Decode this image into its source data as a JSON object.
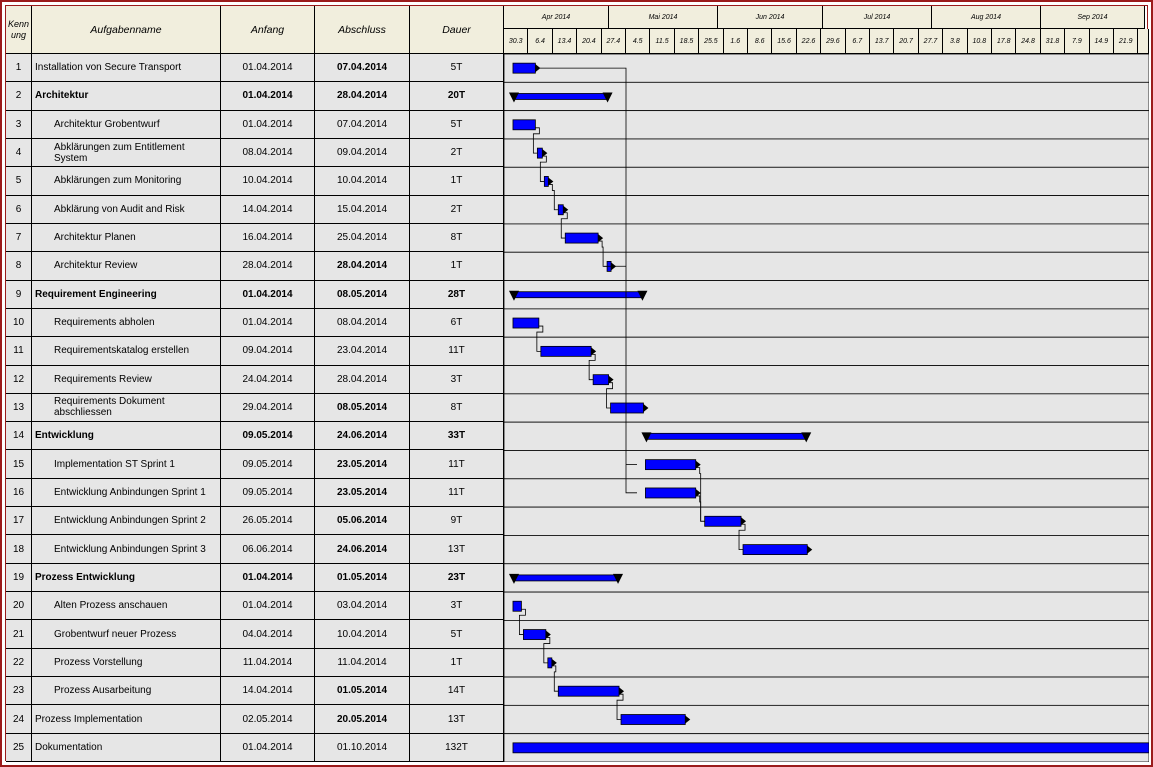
{
  "headers": {
    "id": "Kenn ung",
    "name": "Aufgabenname",
    "start": "Anfang",
    "end": "Abschluss",
    "duration": "Dauer"
  },
  "timeline": {
    "months": [
      "Apr 2014",
      "Mai 2014",
      "Jun 2014",
      "Jul 2014",
      "Aug 2014",
      "Sep 2014"
    ],
    "weeks": [
      "30.3",
      "6.4",
      "13.4",
      "20.4",
      "27.4",
      "4.5",
      "11.5",
      "18.5",
      "25.5",
      "1.6",
      "8.6",
      "15.6",
      "22.6",
      "29.6",
      "6.7",
      "13.7",
      "20.7",
      "27.7",
      "3.8",
      "10.8",
      "17.8",
      "24.8",
      "31.8",
      "7.9",
      "14.9",
      "21.9"
    ]
  },
  "colors": {
    "bar": "#0000ff",
    "header_bg": "#f1eedd",
    "row_bg": "#e6e6e6",
    "frame": "#9b1b1b"
  },
  "tasks": [
    {
      "id": "1",
      "name": "Installation von Secure Transport",
      "start": "01.04.2014",
      "end": "07.04.2014",
      "duration": "5T",
      "summary": false,
      "indent": false,
      "endBold": true
    },
    {
      "id": "2",
      "name": "Architektur",
      "start": "01.04.2014",
      "end": "28.04.2014",
      "duration": "20T",
      "summary": true,
      "indent": false,
      "endBold": true
    },
    {
      "id": "3",
      "name": "Architektur Grobentwurf",
      "start": "01.04.2014",
      "end": "07.04.2014",
      "duration": "5T",
      "summary": false,
      "indent": true,
      "endBold": false
    },
    {
      "id": "4",
      "name": "Abklärungen zum Entitlement System",
      "start": "08.04.2014",
      "end": "09.04.2014",
      "duration": "2T",
      "summary": false,
      "indent": true,
      "endBold": false
    },
    {
      "id": "5",
      "name": "Abklärungen zum Monitoring",
      "start": "10.04.2014",
      "end": "10.04.2014",
      "duration": "1T",
      "summary": false,
      "indent": true,
      "endBold": false
    },
    {
      "id": "6",
      "name": "Abklärung von Audit and Risk",
      "start": "14.04.2014",
      "end": "15.04.2014",
      "duration": "2T",
      "summary": false,
      "indent": true,
      "endBold": false
    },
    {
      "id": "7",
      "name": "Architektur Planen",
      "start": "16.04.2014",
      "end": "25.04.2014",
      "duration": "8T",
      "summary": false,
      "indent": true,
      "endBold": false
    },
    {
      "id": "8",
      "name": "Architektur Review",
      "start": "28.04.2014",
      "end": "28.04.2014",
      "duration": "1T",
      "summary": false,
      "indent": true,
      "endBold": true
    },
    {
      "id": "9",
      "name": "Requirement Engineering",
      "start": "01.04.2014",
      "end": "08.05.2014",
      "duration": "28T",
      "summary": true,
      "indent": false,
      "endBold": true
    },
    {
      "id": "10",
      "name": "Requirements abholen",
      "start": "01.04.2014",
      "end": "08.04.2014",
      "duration": "6T",
      "summary": false,
      "indent": true,
      "endBold": false
    },
    {
      "id": "11",
      "name": "Requirementskatalog erstellen",
      "start": "09.04.2014",
      "end": "23.04.2014",
      "duration": "11T",
      "summary": false,
      "indent": true,
      "endBold": false
    },
    {
      "id": "12",
      "name": "Requirements Review",
      "start": "24.04.2014",
      "end": "28.04.2014",
      "duration": "3T",
      "summary": false,
      "indent": true,
      "endBold": false
    },
    {
      "id": "13",
      "name": "Requirements Dokument abschliessen",
      "start": "29.04.2014",
      "end": "08.05.2014",
      "duration": "8T",
      "summary": false,
      "indent": true,
      "endBold": true
    },
    {
      "id": "14",
      "name": "Entwicklung",
      "start": "09.05.2014",
      "end": "24.06.2014",
      "duration": "33T",
      "summary": true,
      "indent": false,
      "endBold": true
    },
    {
      "id": "15",
      "name": "Implementation ST Sprint 1",
      "start": "09.05.2014",
      "end": "23.05.2014",
      "duration": "11T",
      "summary": false,
      "indent": true,
      "endBold": true
    },
    {
      "id": "16",
      "name": "Entwicklung Anbindungen Sprint 1",
      "start": "09.05.2014",
      "end": "23.05.2014",
      "duration": "11T",
      "summary": false,
      "indent": true,
      "endBold": true
    },
    {
      "id": "17",
      "name": "Entwicklung Anbindungen Sprint 2",
      "start": "26.05.2014",
      "end": "05.06.2014",
      "duration": "9T",
      "summary": false,
      "indent": true,
      "endBold": true
    },
    {
      "id": "18",
      "name": "Entwicklung Anbindungen Sprint 3",
      "start": "06.06.2014",
      "end": "24.06.2014",
      "duration": "13T",
      "summary": false,
      "indent": true,
      "endBold": true
    },
    {
      "id": "19",
      "name": "Prozess Entwicklung",
      "start": "01.04.2014",
      "end": "01.05.2014",
      "duration": "23T",
      "summary": true,
      "indent": false,
      "endBold": true
    },
    {
      "id": "20",
      "name": "Alten Prozess anschauen",
      "start": "01.04.2014",
      "end": "03.04.2014",
      "duration": "3T",
      "summary": false,
      "indent": true,
      "endBold": false
    },
    {
      "id": "21",
      "name": "Grobentwurf neuer Prozess",
      "start": "04.04.2014",
      "end": "10.04.2014",
      "duration": "5T",
      "summary": false,
      "indent": true,
      "endBold": false
    },
    {
      "id": "22",
      "name": "Prozess Vorstellung",
      "start": "11.04.2014",
      "end": "11.04.2014",
      "duration": "1T",
      "summary": false,
      "indent": true,
      "endBold": false
    },
    {
      "id": "23",
      "name": "Prozess Ausarbeitung",
      "start": "14.04.2014",
      "end": "01.05.2014",
      "duration": "14T",
      "summary": false,
      "indent": true,
      "endBold": true
    },
    {
      "id": "24",
      "name": "Prozess Implementation",
      "start": "02.05.2014",
      "end": "20.05.2014",
      "duration": "13T",
      "summary": false,
      "indent": false,
      "endBold": true
    },
    {
      "id": "25",
      "name": "Dokumentation",
      "start": "01.04.2014",
      "end": "01.10.2014",
      "duration": "132T",
      "summary": false,
      "indent": false,
      "endBold": false
    }
  ]
}
